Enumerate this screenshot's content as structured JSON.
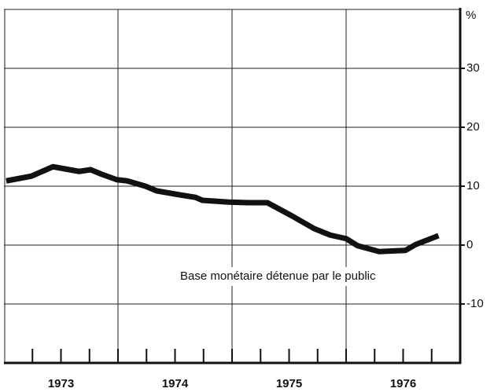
{
  "chart_data": {
    "type": "line",
    "y_label": "%",
    "annotation": "Base monétaire détenue par le public",
    "categories": [
      "1973",
      "1974",
      "1975",
      "1976"
    ],
    "xlim": [
      1973,
      1977
    ],
    "xgrid": [
      1974,
      1975,
      1976
    ],
    "minor_xticks": [
      1973.25,
      1973.5,
      1973.75,
      1974.25,
      1974.5,
      1974.75,
      1975.25,
      1975.5,
      1975.75,
      1976.25,
      1976.5,
      1976.75
    ],
    "ylim": [
      -20,
      40
    ],
    "yticks": [
      -10,
      0,
      10,
      20,
      30
    ],
    "grid": true,
    "series": [
      {
        "color": "#111111",
        "x": [
          1973.02,
          1973.24,
          1973.43,
          1973.66,
          1973.76,
          1973.86,
          1973.99,
          1974.08,
          1974.24,
          1974.34,
          1974.55,
          1974.68,
          1974.74,
          1974.97,
          1975.14,
          1975.31,
          1975.53,
          1975.72,
          1975.86,
          1976.0,
          1976.1,
          1976.29,
          1976.52,
          1976.61,
          1976.81
        ],
        "values": [
          10.9,
          11.7,
          13.3,
          12.5,
          12.8,
          12.0,
          11.1,
          10.9,
          10.0,
          9.2,
          8.5,
          8.1,
          7.6,
          7.3,
          7.2,
          7.2,
          4.9,
          2.8,
          1.7,
          1.1,
          -0.1,
          -1.1,
          -0.9,
          0.1,
          1.6
        ]
      }
    ]
  }
}
